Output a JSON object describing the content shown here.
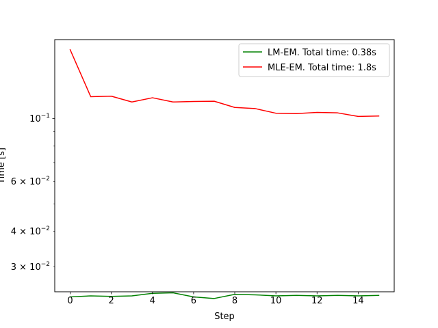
{
  "chart_data": {
    "type": "line",
    "xlabel": "Step",
    "ylabel": "Time [s]",
    "yscale": "log",
    "xlim": [
      -0.75,
      15.75
    ],
    "ylim": [
      0.0245,
      0.19
    ],
    "x_ticks": [
      0,
      2,
      4,
      6,
      8,
      10,
      12,
      14
    ],
    "y_ticks": [
      {
        "value": 0.1,
        "base": "10",
        "exp": "−1",
        "mant": ""
      },
      {
        "value": 0.06,
        "base": "10",
        "exp": "−2",
        "mant": "6 × "
      },
      {
        "value": 0.04,
        "base": "10",
        "exp": "−2",
        "mant": "4 × "
      },
      {
        "value": 0.03,
        "base": "10",
        "exp": "−2",
        "mant": "3 × "
      }
    ],
    "legend_position": "top-right",
    "series": [
      {
        "name": "LM-EM. Total time: 0.38s",
        "color": "#008000",
        "x": [
          0,
          1,
          2,
          3,
          4,
          5,
          6,
          7,
          8,
          9,
          10,
          11,
          12,
          13,
          14,
          15
        ],
        "values": [
          0.0235,
          0.0237,
          0.0236,
          0.0237,
          0.0242,
          0.0243,
          0.0235,
          0.0232,
          0.024,
          0.0239,
          0.0237,
          0.0238,
          0.0237,
          0.0238,
          0.0237,
          0.0238
        ]
      },
      {
        "name": "MLE-EM. Total time: 1.8s",
        "color": "#ff0000",
        "x": [
          0,
          1,
          2,
          3,
          4,
          5,
          6,
          7,
          8,
          9,
          10,
          11,
          12,
          13,
          14,
          15
        ],
        "values": [
          0.175,
          0.1195,
          0.12,
          0.1145,
          0.1185,
          0.1145,
          0.115,
          0.1152,
          0.1095,
          0.1085,
          0.1045,
          0.1042,
          0.1052,
          0.1048,
          0.1018,
          0.1022
        ]
      }
    ]
  }
}
